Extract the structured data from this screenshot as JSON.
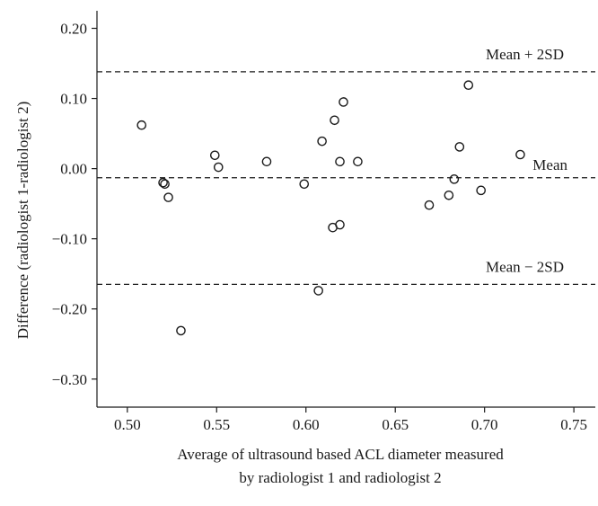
{
  "chart_data": {
    "type": "scatter",
    "title": "",
    "xlabel": [
      "Average of ultrasound based ACL diameter measured",
      "by radiologist 1 and radiologist 2"
    ],
    "ylabel": "Difference (radiologist 1-radiologist 2)",
    "xlim": [
      0.483,
      0.762
    ],
    "ylim": [
      -0.34,
      0.225
    ],
    "x_ticks": [
      0.5,
      0.55,
      0.6,
      0.65,
      0.7,
      0.75
    ],
    "x_tick_labels": [
      "0.50",
      "0.55",
      "0.60",
      "0.65",
      "0.70",
      "0.75"
    ],
    "y_ticks": [
      0.2,
      0.1,
      0.0,
      -0.1,
      -0.2,
      -0.3
    ],
    "y_tick_labels": [
      "0.20",
      "0.10",
      "0.00",
      "−0.10",
      "−0.20",
      "−0.30"
    ],
    "reference_lines": [
      {
        "name": "Mean + 2SD",
        "label": "Mean + 2SD",
        "value": 0.138
      },
      {
        "name": "Mean",
        "label": "Mean",
        "value": -0.013
      },
      {
        "name": "Mean - 2SD",
        "label": "Mean − 2SD",
        "value": -0.165
      }
    ],
    "points": [
      {
        "x": 0.508,
        "y": 0.062
      },
      {
        "x": 0.52,
        "y": -0.02
      },
      {
        "x": 0.521,
        "y": -0.022
      },
      {
        "x": 0.523,
        "y": -0.041
      },
      {
        "x": 0.53,
        "y": -0.231
      },
      {
        "x": 0.549,
        "y": 0.019
      },
      {
        "x": 0.551,
        "y": 0.002
      },
      {
        "x": 0.578,
        "y": 0.01
      },
      {
        "x": 0.599,
        "y": -0.022
      },
      {
        "x": 0.607,
        "y": -0.174
      },
      {
        "x": 0.609,
        "y": 0.039
      },
      {
        "x": 0.615,
        "y": -0.084
      },
      {
        "x": 0.616,
        "y": 0.069
      },
      {
        "x": 0.619,
        "y": -0.08
      },
      {
        "x": 0.619,
        "y": 0.01
      },
      {
        "x": 0.621,
        "y": 0.095
      },
      {
        "x": 0.629,
        "y": 0.01
      },
      {
        "x": 0.669,
        "y": -0.052
      },
      {
        "x": 0.68,
        "y": -0.038
      },
      {
        "x": 0.683,
        "y": -0.015
      },
      {
        "x": 0.686,
        "y": 0.031
      },
      {
        "x": 0.691,
        "y": 0.119
      },
      {
        "x": 0.698,
        "y": -0.031
      },
      {
        "x": 0.72,
        "y": 0.02
      }
    ]
  }
}
